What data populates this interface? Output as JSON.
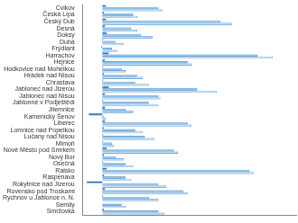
{
  "chart_data": {
    "type": "bar",
    "orientation": "horizontal",
    "grid": false,
    "tick_labels": "y",
    "categories": [
      "Cvikov",
      "Česká Lípa",
      "Český Dub",
      "Desná",
      "Doksy",
      "Dubá",
      "Frýdlant",
      "Harrachov",
      "Hejnice",
      "Hodkovice nad Mohelkou",
      "Hrádek nad Nisou",
      "Chrastava",
      "Jablonec nad Jizerou",
      "Jablonec nad Nisou",
      "Jablonné v Podještědí",
      "Jilemnice",
      "Kamenický Šenov",
      "Liberec",
      "Lomnice nad Popelkou",
      "Lučany nad Nisou",
      "Mimoň",
      "Nové Město pod Smrkem",
      "Nový Bor",
      "Osečná",
      "Ralsko",
      "Raspenava",
      "Rokytnice nad Jizerou",
      "Rovensko pod Troskami",
      "Rychnov u Jablonce n. N.",
      "Semily",
      "Smržovka"
    ],
    "series": [
      {
        "color": "#1a6db5",
        "values": [
          2,
          1,
          2,
          1.5,
          2.4,
          0.5,
          -0.5,
          3.4,
          1.5,
          0.5,
          1,
          0.5,
          3.4,
          1.5,
          0.5,
          1.5,
          -7,
          1.5,
          1,
          0.5,
          0.5,
          2.4,
          1,
          0.5,
          2.4,
          1,
          -8,
          1.5,
          0.5,
          0,
          1
        ]
      },
      {
        "color": "#8fc1ea",
        "values": [
          29,
          16,
          61,
          15,
          20,
          7,
          5,
          80,
          44,
          10,
          18,
          17,
          49,
          29,
          24,
          12,
          1,
          44,
          17,
          22,
          5,
          37,
          7,
          12,
          76,
          12,
          29,
          42,
          24,
          10,
          29
        ]
      },
      {
        "color": "#c5dff5",
        "values": [
          31,
          18,
          67,
          18,
          26,
          11,
          8,
          88,
          46,
          12,
          21,
          24,
          59,
          30,
          29,
          16,
          2,
          46,
          21,
          27,
          6,
          39,
          11,
          16,
          78,
          15,
          33,
          44,
          29,
          12,
          32
        ]
      }
    ],
    "xlim": [
      -10,
      100
    ]
  }
}
